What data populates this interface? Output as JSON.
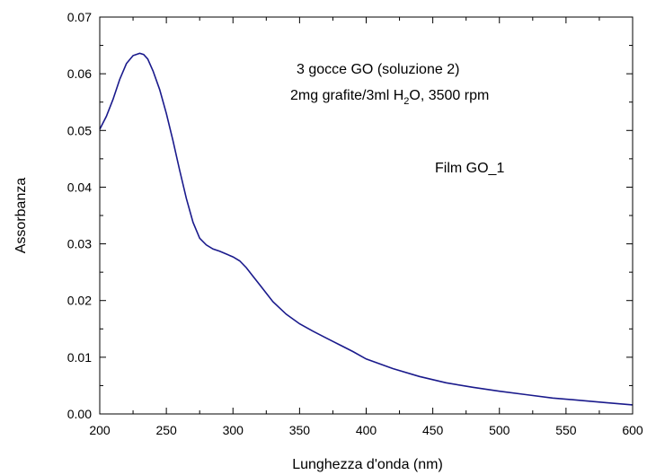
{
  "chart_data": {
    "type": "line",
    "title": "",
    "xlabel": "Lunghezza d'onda (nm)",
    "ylabel": "Assorbanza",
    "xlim": [
      200,
      600
    ],
    "ylim": [
      0,
      0.07
    ],
    "xticks": [
      "200",
      "250",
      "300",
      "350",
      "400",
      "450",
      "500",
      "550",
      "600"
    ],
    "yticks": [
      "0.00",
      "0.01",
      "0.02",
      "0.03",
      "0.04",
      "0.05",
      "0.06",
      "0.07"
    ],
    "grid": false,
    "line_color": "#1a1a8c",
    "annotations": {
      "line1": "3 gocce GO (soluzione 2)",
      "line2_a": "2mg grafite/3ml H",
      "line2_sub": "2",
      "line2_b": "O, 3500 rpm",
      "line3": "Film GO_1"
    },
    "series": [
      {
        "x": [
          200,
          205,
          210,
          215,
          220,
          225,
          230,
          233,
          236,
          240,
          245,
          250,
          255,
          260,
          265,
          270,
          275,
          280,
          285,
          290,
          295,
          300,
          305,
          310,
          315,
          320,
          325,
          330,
          340,
          350,
          360,
          370,
          380,
          390,
          400,
          420,
          440,
          460,
          480,
          500,
          520,
          540,
          560,
          580,
          600
        ],
        "y": [
          0.0502,
          0.0525,
          0.0555,
          0.059,
          0.0618,
          0.0632,
          0.0636,
          0.0634,
          0.0626,
          0.0605,
          0.0572,
          0.053,
          0.0482,
          0.043,
          0.038,
          0.0338,
          0.031,
          0.0298,
          0.0291,
          0.0287,
          0.0282,
          0.0277,
          0.027,
          0.0258,
          0.0243,
          0.0228,
          0.0213,
          0.0198,
          0.0176,
          0.0159,
          0.0146,
          0.0134,
          0.0122,
          0.011,
          0.0097,
          0.008,
          0.0066,
          0.0055,
          0.0047,
          0.004,
          0.0034,
          0.0028,
          0.0024,
          0.002,
          0.0016
        ]
      }
    ]
  }
}
